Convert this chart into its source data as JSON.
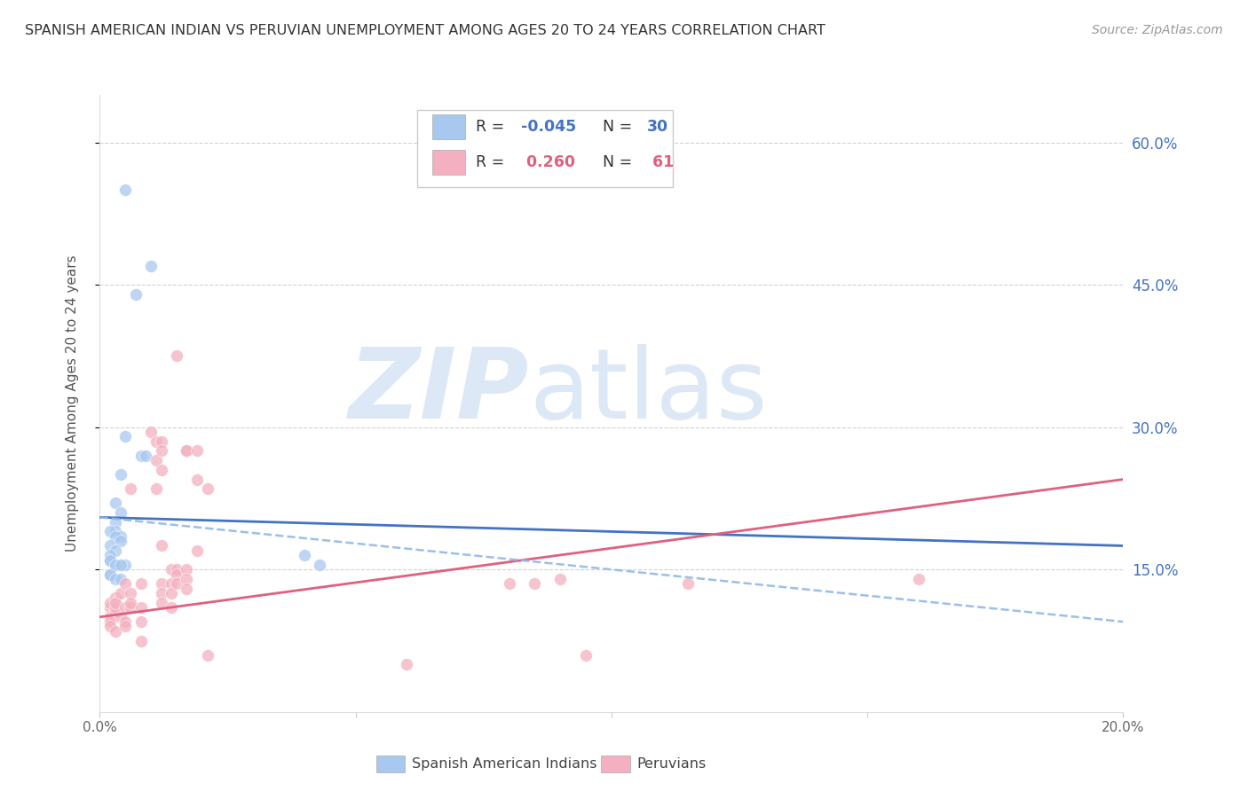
{
  "title": "SPANISH AMERICAN INDIAN VS PERUVIAN UNEMPLOYMENT AMONG AGES 20 TO 24 YEARS CORRELATION CHART",
  "source": "Source: ZipAtlas.com",
  "ylabel": "Unemployment Among Ages 20 to 24 years",
  "right_yticks": [
    "60.0%",
    "45.0%",
    "30.0%",
    "15.0%"
  ],
  "right_ytick_vals": [
    0.6,
    0.45,
    0.3,
    0.15
  ],
  "legend_blue_r": "-0.045",
  "legend_blue_n": "30",
  "legend_pink_r": "0.260",
  "legend_pink_n": "61",
  "blue_color": "#a8c8f0",
  "pink_color": "#f4b0c0",
  "blue_line_color": "#4472c4",
  "pink_line_color": "#e06080",
  "blue_dash_color": "#90b8e8",
  "watermark_zip": "ZIP",
  "watermark_atlas": "atlas",
  "watermark_color": "#dce8f5",
  "title_color": "#333333",
  "right_axis_color": "#4472c4",
  "blue_scatter": [
    [
      0.005,
      0.55
    ],
    [
      0.01,
      0.47
    ],
    [
      0.007,
      0.44
    ],
    [
      0.005,
      0.29
    ],
    [
      0.008,
      0.27
    ],
    [
      0.004,
      0.25
    ],
    [
      0.003,
      0.22
    ],
    [
      0.004,
      0.21
    ],
    [
      0.003,
      0.2
    ],
    [
      0.003,
      0.19
    ],
    [
      0.004,
      0.185
    ],
    [
      0.009,
      0.27
    ],
    [
      0.002,
      0.16
    ],
    [
      0.003,
      0.155
    ],
    [
      0.005,
      0.155
    ],
    [
      0.002,
      0.145
    ],
    [
      0.002,
      0.19
    ],
    [
      0.003,
      0.185
    ],
    [
      0.004,
      0.18
    ],
    [
      0.002,
      0.175
    ],
    [
      0.003,
      0.17
    ],
    [
      0.002,
      0.165
    ],
    [
      0.002,
      0.16
    ],
    [
      0.003,
      0.155
    ],
    [
      0.004,
      0.155
    ],
    [
      0.002,
      0.145
    ],
    [
      0.003,
      0.14
    ],
    [
      0.004,
      0.14
    ],
    [
      0.04,
      0.165
    ],
    [
      0.043,
      0.155
    ]
  ],
  "pink_scatter": [
    [
      0.003,
      0.115
    ],
    [
      0.002,
      0.11
    ],
    [
      0.002,
      0.115
    ],
    [
      0.003,
      0.12
    ],
    [
      0.002,
      0.1
    ],
    [
      0.003,
      0.105
    ],
    [
      0.003,
      0.11
    ],
    [
      0.004,
      0.1
    ],
    [
      0.002,
      0.095
    ],
    [
      0.002,
      0.09
    ],
    [
      0.003,
      0.085
    ],
    [
      0.003,
      0.115
    ],
    [
      0.004,
      0.125
    ],
    [
      0.005,
      0.135
    ],
    [
      0.005,
      0.11
    ],
    [
      0.005,
      0.095
    ],
    [
      0.005,
      0.09
    ],
    [
      0.006,
      0.11
    ],
    [
      0.006,
      0.125
    ],
    [
      0.006,
      0.115
    ],
    [
      0.006,
      0.235
    ],
    [
      0.008,
      0.095
    ],
    [
      0.008,
      0.11
    ],
    [
      0.008,
      0.135
    ],
    [
      0.008,
      0.075
    ],
    [
      0.01,
      0.295
    ],
    [
      0.011,
      0.285
    ],
    [
      0.011,
      0.265
    ],
    [
      0.011,
      0.235
    ],
    [
      0.012,
      0.285
    ],
    [
      0.012,
      0.275
    ],
    [
      0.012,
      0.255
    ],
    [
      0.012,
      0.175
    ],
    [
      0.012,
      0.135
    ],
    [
      0.012,
      0.125
    ],
    [
      0.012,
      0.115
    ],
    [
      0.014,
      0.15
    ],
    [
      0.014,
      0.135
    ],
    [
      0.014,
      0.125
    ],
    [
      0.014,
      0.11
    ],
    [
      0.015,
      0.375
    ],
    [
      0.015,
      0.15
    ],
    [
      0.015,
      0.145
    ],
    [
      0.015,
      0.135
    ],
    [
      0.017,
      0.275
    ],
    [
      0.017,
      0.275
    ],
    [
      0.017,
      0.15
    ],
    [
      0.017,
      0.14
    ],
    [
      0.017,
      0.13
    ],
    [
      0.019,
      0.275
    ],
    [
      0.019,
      0.245
    ],
    [
      0.019,
      0.17
    ],
    [
      0.021,
      0.235
    ],
    [
      0.021,
      0.06
    ],
    [
      0.06,
      0.05
    ],
    [
      0.08,
      0.135
    ],
    [
      0.085,
      0.135
    ],
    [
      0.09,
      0.14
    ],
    [
      0.095,
      0.06
    ],
    [
      0.115,
      0.135
    ],
    [
      0.16,
      0.14
    ]
  ],
  "blue_trendline": [
    [
      0.0,
      0.205
    ],
    [
      0.2,
      0.175
    ]
  ],
  "pink_trendline": [
    [
      0.0,
      0.1
    ],
    [
      0.2,
      0.245
    ]
  ],
  "blue_dash_trendline": [
    [
      0.0,
      0.205
    ],
    [
      0.2,
      0.095
    ]
  ],
  "xmin": 0.0,
  "xmax": 0.2,
  "ymin": 0.0,
  "ymax": 0.65,
  "xticks": [
    0.0,
    0.05,
    0.1,
    0.15,
    0.2
  ],
  "xticklabels": [
    "0.0%",
    "",
    "",
    "",
    "20.0%"
  ]
}
